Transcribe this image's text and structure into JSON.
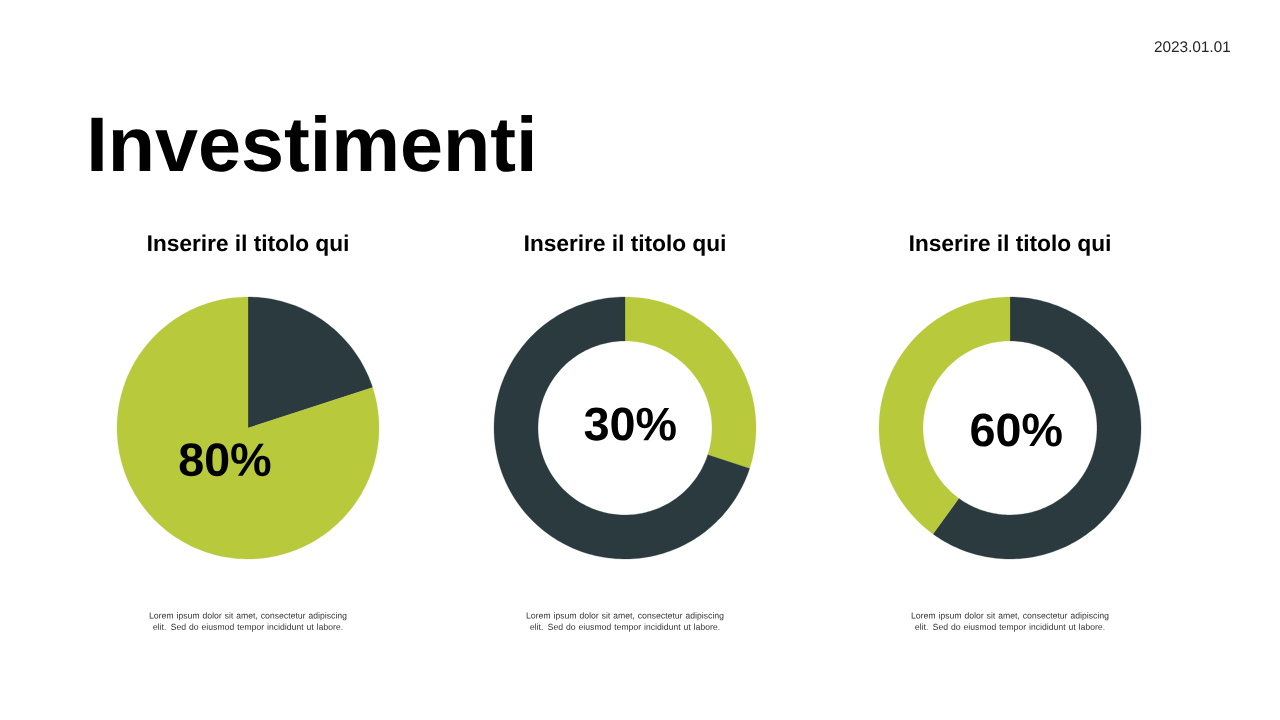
{
  "chart_data": [
    {
      "type": "other",
      "title": "Investimenti",
      "annotations": [
        "2023.01.01"
      ]
    },
    {
      "type": "pie",
      "title": "Inserire il titolo qui",
      "categories": [
        null,
        null
      ],
      "values": [
        20,
        80
      ],
      "colors": [
        "#2a3a3e",
        "#b8c93b"
      ],
      "value_labels": [
        null,
        "80%"
      ],
      "annotations": [
        "Lorem ipsum dolor sit amet, consectetur adipiscing elit. Sed do eiusmod tempor incididunt ut labore."
      ]
    },
    {
      "type": "donut",
      "title": "Inserire il titolo qui",
      "categories": [
        null,
        null
      ],
      "values": [
        30,
        70
      ],
      "colors": [
        "#b8c93b",
        "#2a3a3e"
      ],
      "value_labels": [
        "30%",
        null
      ],
      "annotations": [
        "Lorem ipsum dolor sit amet, consectetur adipiscing elit. Sed do eiusmod tempor incididunt ut labore."
      ]
    },
    {
      "type": "donut",
      "title": "Inserire il titolo qui",
      "categories": [
        null,
        null
      ],
      "values": [
        60,
        40
      ],
      "colors": [
        "#2a3a3e",
        "#b8c93b"
      ],
      "value_labels": [
        "60%",
        null
      ],
      "annotations": [
        "Lorem ipsum dolor sit amet, consectetur adipiscing elit. Sed do eiusmod tempor incididunt ut labore."
      ]
    }
  ]
}
